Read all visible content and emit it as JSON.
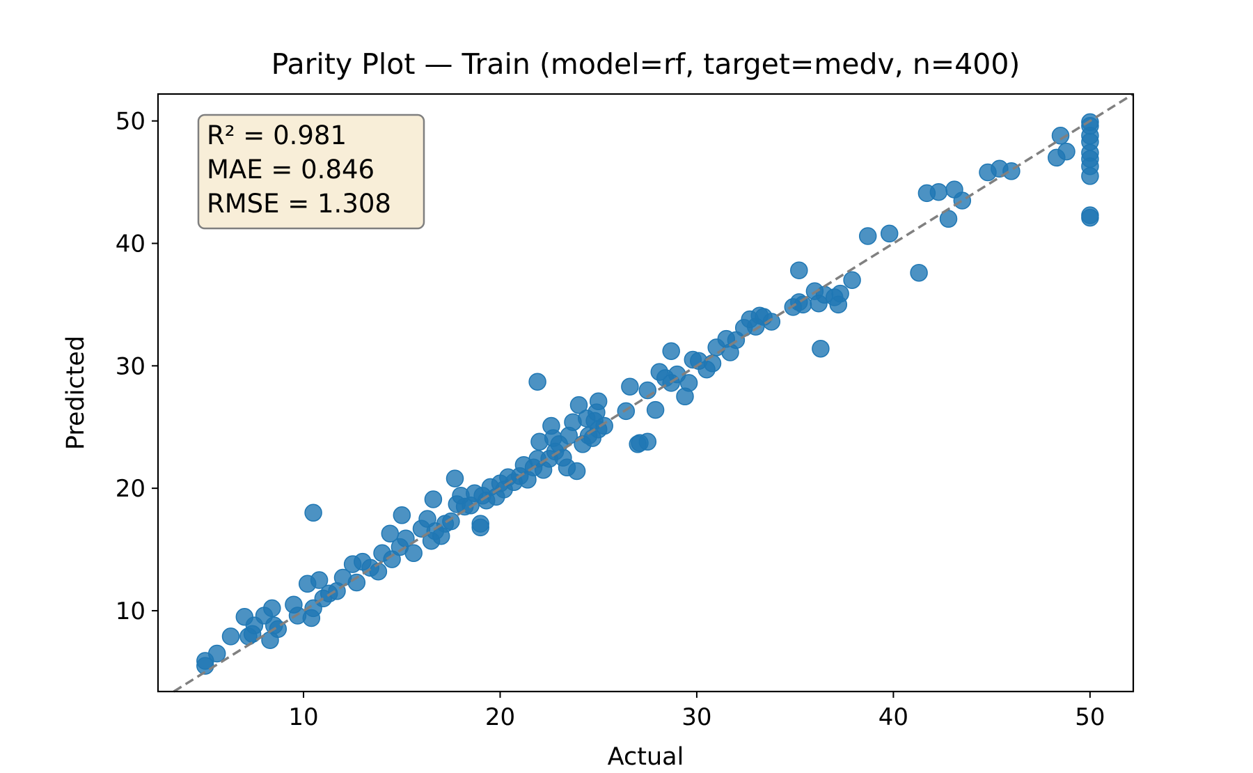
{
  "chart_data": {
    "type": "scatter",
    "title": "Parity Plot — Train (model=rf, target=medv, n=400)",
    "xlabel": "Actual",
    "ylabel": "Predicted",
    "xlim": [
      2.6,
      52.2
    ],
    "ylim": [
      3.4,
      52.2
    ],
    "xticks": [
      10,
      20,
      30,
      40,
      50
    ],
    "yticks": [
      10,
      20,
      30,
      40,
      50
    ],
    "grid": false,
    "reference_line": {
      "type": "identity",
      "style": "dashed",
      "color": "#808080"
    },
    "marker_color": "#1f77b4",
    "marker_alpha": 0.8,
    "stats_box": {
      "lines": [
        "R² = 0.981",
        "MAE = 0.846",
        "RMSE = 1.308"
      ],
      "position": "top-left",
      "background": "#f8eed8",
      "border": "#7f7f7f"
    },
    "series": [
      {
        "x": [
          5.0,
          5.0,
          5.6,
          6.3,
          7.0,
          7.2,
          7.4,
          7.5,
          8.0,
          8.3,
          8.4,
          8.5,
          8.7,
          9.5,
          9.7,
          10.2,
          10.4,
          10.5,
          10.8,
          11.0,
          11.3,
          11.7,
          12.0,
          12.5,
          12.7,
          13.0,
          13.4,
          13.8,
          14.0,
          14.4,
          14.5,
          14.9,
          15.0,
          15.2,
          15.6,
          16.0,
          16.3,
          16.5,
          16.7,
          17.0,
          17.2,
          17.5,
          17.8,
          18.0,
          18.2,
          18.5,
          18.7,
          19.0,
          19.1,
          19.3,
          19.5,
          19.8,
          20.0,
          20.2,
          20.4,
          20.7,
          21.0,
          21.2,
          21.4,
          21.7,
          21.9,
          22.0,
          22.2,
          22.5,
          22.6,
          22.8,
          23.0,
          23.2,
          23.5,
          23.7,
          23.9,
          24.0,
          24.2,
          24.4,
          24.5,
          24.7,
          24.8,
          25.0,
          25.0,
          25.3,
          26.4,
          26.6,
          27.0,
          27.5,
          27.9,
          28.1,
          28.4,
          28.7,
          29.0,
          29.4,
          29.6,
          29.8,
          30.1,
          30.5,
          30.8,
          31.0,
          31.5,
          31.7,
          32.0,
          32.4,
          32.7,
          33.0,
          33.2,
          33.4,
          33.8,
          34.9,
          35.2,
          35.4,
          36.0,
          36.2,
          36.5,
          37.0,
          37.2,
          37.3,
          37.9,
          38.7,
          39.8,
          41.3,
          41.7,
          42.3,
          42.8,
          43.1,
          43.5,
          44.8,
          45.4,
          46.0,
          48.3,
          48.5,
          48.8,
          50.0,
          50.0,
          50.0,
          50.0,
          50.0,
          50.0,
          50.0,
          50.0,
          50.0,
          50.0,
          10.5,
          21.9,
          36.3,
          35.2,
          28.7,
          27.1,
          27.5,
          17.7,
          16.6,
          19.0,
          23.4,
          24.9,
          22.7
        ],
        "y": [
          5.5,
          5.9,
          6.5,
          7.9,
          9.5,
          7.9,
          8.1,
          8.8,
          9.6,
          7.6,
          10.2,
          8.8,
          8.5,
          10.5,
          9.6,
          12.2,
          9.4,
          10.2,
          12.5,
          11.0,
          11.4,
          11.6,
          12.7,
          13.8,
          12.3,
          14.0,
          13.5,
          13.2,
          14.7,
          16.3,
          14.2,
          15.2,
          17.8,
          15.9,
          14.7,
          16.7,
          17.5,
          15.7,
          16.5,
          16.1,
          17.1,
          17.3,
          18.7,
          19.4,
          18.5,
          18.6,
          19.6,
          17.1,
          19.4,
          19.0,
          20.1,
          19.3,
          20.4,
          19.9,
          20.9,
          20.5,
          21.0,
          21.9,
          20.7,
          21.7,
          22.4,
          23.8,
          21.5,
          22.4,
          25.1,
          23.0,
          23.6,
          22.5,
          24.3,
          25.4,
          21.4,
          26.8,
          23.6,
          25.7,
          24.3,
          24.1,
          25.5,
          27.1,
          24.8,
          25.1,
          26.3,
          28.3,
          23.6,
          28.0,
          26.4,
          29.5,
          29.0,
          28.6,
          29.3,
          27.5,
          28.6,
          30.5,
          30.4,
          29.7,
          30.2,
          31.5,
          32.2,
          31.1,
          32.1,
          33.1,
          33.8,
          33.2,
          34.1,
          34.0,
          33.6,
          34.8,
          35.2,
          35.0,
          36.1,
          35.1,
          35.8,
          35.6,
          35.0,
          35.9,
          37.0,
          40.6,
          40.8,
          37.6,
          44.1,
          44.2,
          42.0,
          44.4,
          43.5,
          45.8,
          46.1,
          45.9,
          47.0,
          48.8,
          47.5,
          49.6,
          48.8,
          48.3,
          47.4,
          46.9,
          46.3,
          45.5,
          42.3,
          42.1,
          49.9,
          18.0,
          28.7,
          31.4,
          37.8,
          31.2,
          23.7,
          23.8,
          20.8,
          19.1,
          16.8,
          21.7,
          26.2,
          24.1
        ]
      }
    ]
  }
}
